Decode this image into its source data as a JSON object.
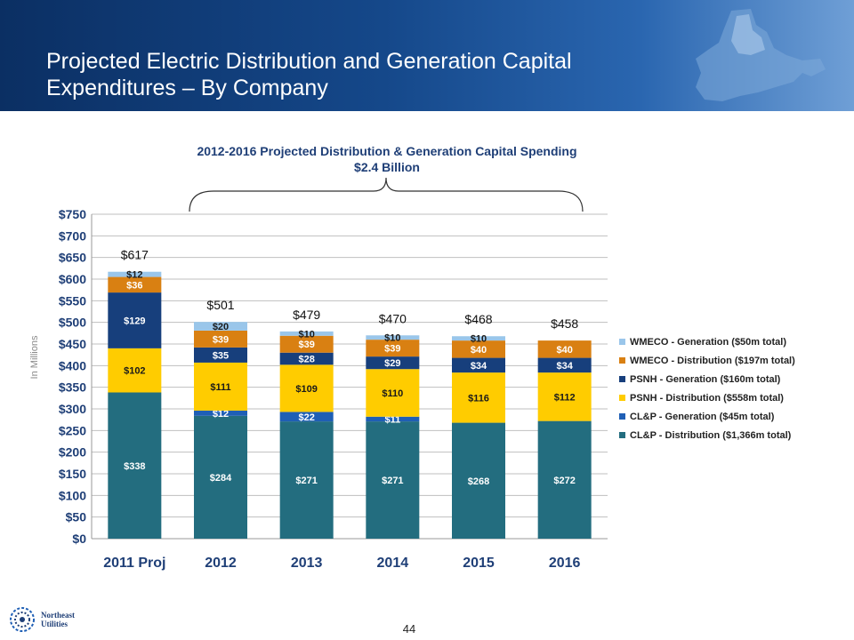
{
  "header": {
    "title_line1": "Projected Electric Distribution and Generation Capital",
    "title_line2": "Expenditures – By Company"
  },
  "subtitle": {
    "line1": "2012-2016 Projected Distribution & Generation Capital Spending",
    "line2": "$2.4 Billion"
  },
  "page_number": "44",
  "logo": {
    "line1": "Northeast",
    "line2": "Utilities"
  },
  "chart_data": {
    "type": "bar",
    "stacked": true,
    "ylabel": "In Millions",
    "ylim": [
      0,
      750
    ],
    "yticks": [
      0,
      50,
      100,
      150,
      200,
      250,
      300,
      350,
      400,
      450,
      500,
      550,
      600,
      650,
      700,
      750
    ],
    "ytick_labels": [
      "$0",
      "$50",
      "$100",
      "$150",
      "$200",
      "$250",
      "$300",
      "$350",
      "$400",
      "$450",
      "$500",
      "$550",
      "$600",
      "$650",
      "$700",
      "$750"
    ],
    "grid": true,
    "legend_position": "right",
    "categories": [
      "2011 Proj",
      "2012",
      "2013",
      "2014",
      "2015",
      "2016"
    ],
    "totals": [
      617,
      501,
      479,
      470,
      468,
      458
    ],
    "total_labels": [
      "$617",
      "$501",
      "$479",
      "$470",
      "$468",
      "$458"
    ],
    "series": [
      {
        "name": "CL&P - Distribution ($1,366m total)",
        "color": "#236d7f",
        "values": [
          338,
          284,
          271,
          271,
          268,
          272
        ],
        "labels": [
          "$338",
          "$284",
          "$271",
          "$271",
          "$268",
          "$272"
        ]
      },
      {
        "name": "CL&P - Generation ($45m total)",
        "color": "#1f5fb5",
        "values": [
          0,
          12,
          22,
          11,
          0,
          0
        ],
        "labels": [
          "",
          "$12",
          "$22",
          "$11",
          "",
          ""
        ]
      },
      {
        "name": "PSNH - Distribution ($558m total)",
        "color": "#ffcc00",
        "values": [
          102,
          111,
          109,
          110,
          116,
          112
        ],
        "labels": [
          "$102",
          "$111",
          "$109",
          "$110",
          "$116",
          "$112"
        ]
      },
      {
        "name": "PSNH - Generation ($160m total)",
        "color": "#173f7c",
        "values": [
          129,
          35,
          28,
          29,
          34,
          34
        ],
        "labels": [
          "$129",
          "$35",
          "$28",
          "$29",
          "$34",
          "$34"
        ]
      },
      {
        "name": "WMECO - Distribution ($197m total)",
        "color": "#d98012",
        "values": [
          36,
          39,
          39,
          39,
          40,
          40
        ],
        "labels": [
          "$36",
          "$39",
          "$39",
          "$39",
          "$40",
          "$40"
        ]
      },
      {
        "name": "WMECO - Generation ($50m total)",
        "color": "#9ac6ea",
        "values": [
          12,
          20,
          10,
          10,
          10,
          0
        ],
        "labels": [
          "$12",
          "$20",
          "$10",
          "$10",
          "$10",
          ""
        ]
      }
    ],
    "legend_order": [
      5,
      4,
      3,
      2,
      1,
      0
    ]
  }
}
